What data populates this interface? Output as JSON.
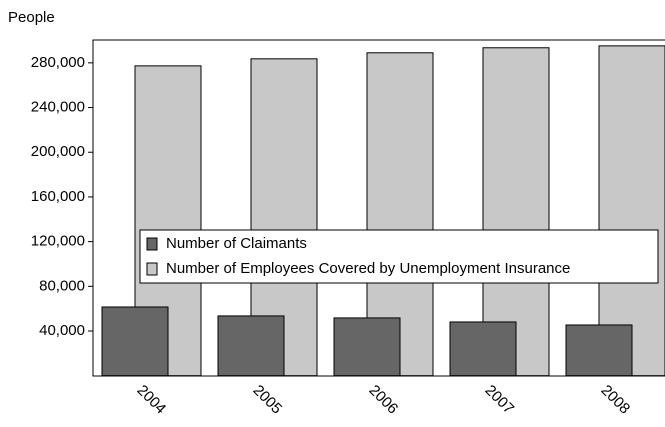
{
  "chart_data": {
    "type": "bar",
    "y_label": "People",
    "categories": [
      "2004",
      "2005",
      "2006",
      "2007",
      "2008"
    ],
    "series": [
      {
        "name": "Number of Claimants",
        "color": "#666666",
        "values": [
          61500,
          53500,
          51700,
          48100,
          45400
        ]
      },
      {
        "name": "Number of Employees Covered by Unemployment Insurance",
        "color": "#c8c8c8",
        "values": [
          277300,
          283600,
          289000,
          293500,
          295200
        ]
      }
    ],
    "ylim": [
      0,
      300000
    ],
    "yticks": [
      {
        "value": 40000,
        "label": "40,000"
      },
      {
        "value": 80000,
        "label": "80,000"
      },
      {
        "value": 120000,
        "label": "120,000"
      },
      {
        "value": 160000,
        "label": "160,000"
      },
      {
        "value": 200000,
        "label": "200,000"
      },
      {
        "value": 240000,
        "label": "240,000"
      },
      {
        "value": 280000,
        "label": "280,000"
      }
    ],
    "legend": "inside"
  }
}
